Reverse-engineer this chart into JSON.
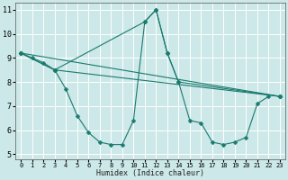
{
  "xlabel": "Humidex (Indice chaleur)",
  "xlim": [
    -0.5,
    23.5
  ],
  "ylim": [
    4.8,
    11.3
  ],
  "yticks": [
    5,
    6,
    7,
    8,
    9,
    10,
    11
  ],
  "xticks": [
    0,
    1,
    2,
    3,
    4,
    5,
    6,
    7,
    8,
    9,
    10,
    11,
    12,
    13,
    14,
    15,
    16,
    17,
    18,
    19,
    20,
    21,
    22,
    23
  ],
  "bg_color": "#cce8e8",
  "grid_color": "#ffffff",
  "line_color": "#1a7a6e",
  "lines": [
    {
      "x": [
        0,
        1,
        2,
        3,
        4,
        5,
        6,
        7,
        8,
        9,
        10,
        11,
        12,
        13,
        14,
        15,
        16,
        17,
        18,
        19,
        20,
        21,
        22
      ],
      "y": [
        9.2,
        9.0,
        8.8,
        8.5,
        7.7,
        6.6,
        5.9,
        5.5,
        5.4,
        5.4,
        6.4,
        10.5,
        11.0,
        9.2,
        8.0,
        6.4,
        6.3,
        5.5,
        5.4,
        5.5,
        5.7,
        7.1,
        7.4
      ]
    },
    {
      "x": [
        0,
        23
      ],
      "y": [
        9.2,
        7.4
      ]
    },
    {
      "x": [
        0,
        3,
        23
      ],
      "y": [
        9.2,
        8.5,
        7.4
      ]
    },
    {
      "x": [
        0,
        3,
        11,
        12,
        13,
        14,
        23
      ],
      "y": [
        9.2,
        8.5,
        10.5,
        11.0,
        9.2,
        8.0,
        7.4
      ]
    }
  ],
  "marker": "D",
  "markersize": 2.5,
  "linewidth": 0.8
}
